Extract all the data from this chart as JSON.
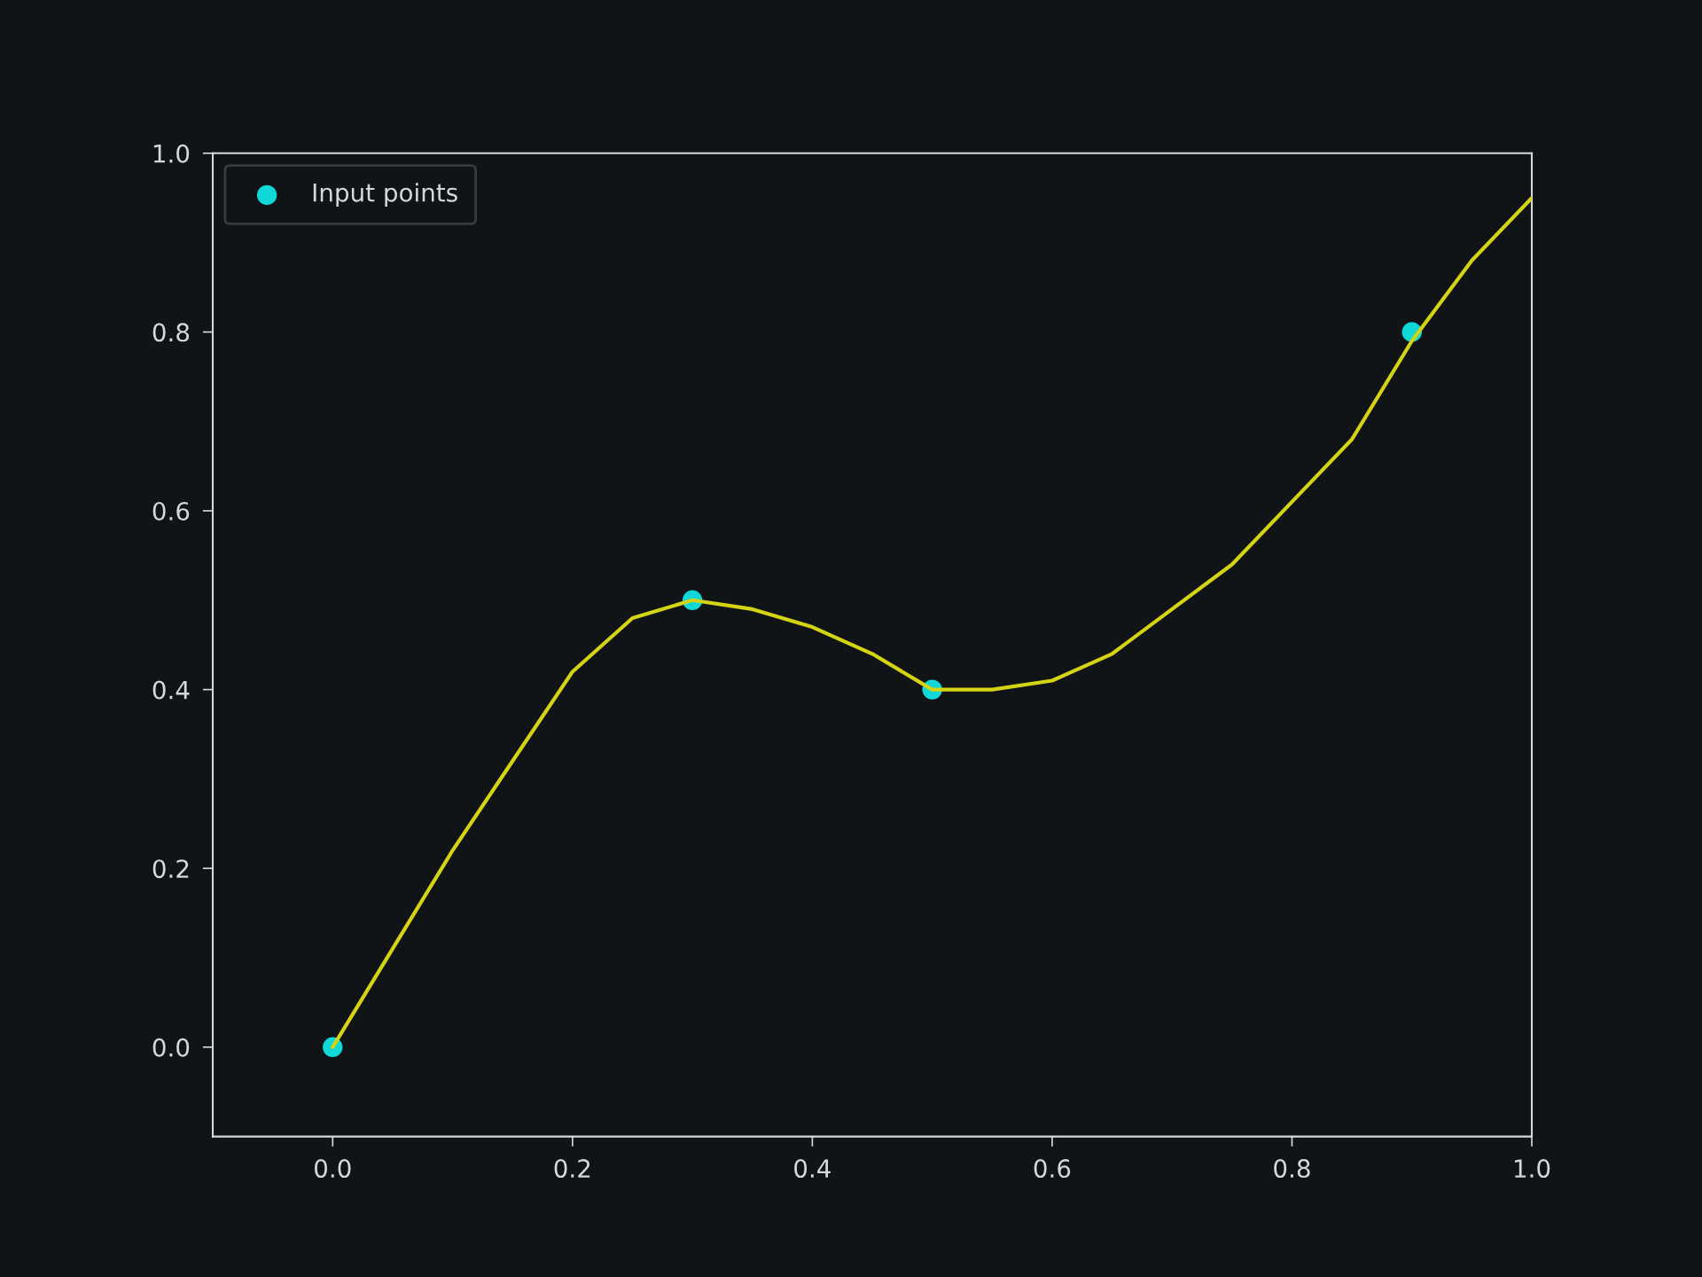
{
  "chart_data": {
    "type": "scatter",
    "xlim": [
      -0.1,
      1.0
    ],
    "ylim": [
      -0.1,
      1.0
    ],
    "xticks": [
      {
        "value": 0,
        "label": "0.0"
      },
      0.2,
      0.4,
      0.6,
      0.8,
      {
        "value": 1,
        "label": "1.0"
      }
    ],
    "yticks": [
      {
        "value": 0,
        "label": "0.0"
      },
      0.2,
      0.4,
      0.6,
      0.8,
      {
        "value": 1,
        "label": "1.0"
      }
    ],
    "grid": false,
    "legend": "top left",
    "series": [
      {
        "type": "line",
        "color": "#d4d414",
        "marker": "none",
        "line_style": "solid",
        "x": [
          0,
          0.05,
          0.1,
          0.15,
          0.2,
          0.25,
          0.3,
          0.35,
          0.4,
          0.45,
          0.5,
          0.55,
          0.6,
          0.65,
          0.7,
          0.75,
          0.8,
          0.85,
          0.9,
          0.95,
          1.0
        ],
        "values": [
          0,
          0.11,
          0.22,
          0.32,
          0.42,
          0.48,
          0.5,
          0.49,
          0.47,
          0.44,
          0.4,
          0.4,
          0.41,
          0.44,
          0.49,
          0.54,
          0.61,
          0.68,
          0.79,
          0.88,
          0.95
        ]
      },
      {
        "name": "Input points",
        "color": "#11d8d8",
        "marker": "circle",
        "x": [
          0,
          0.3,
          0.5,
          0.9
        ],
        "values": [
          0,
          0.5,
          0.4,
          0.8
        ]
      }
    ]
  }
}
